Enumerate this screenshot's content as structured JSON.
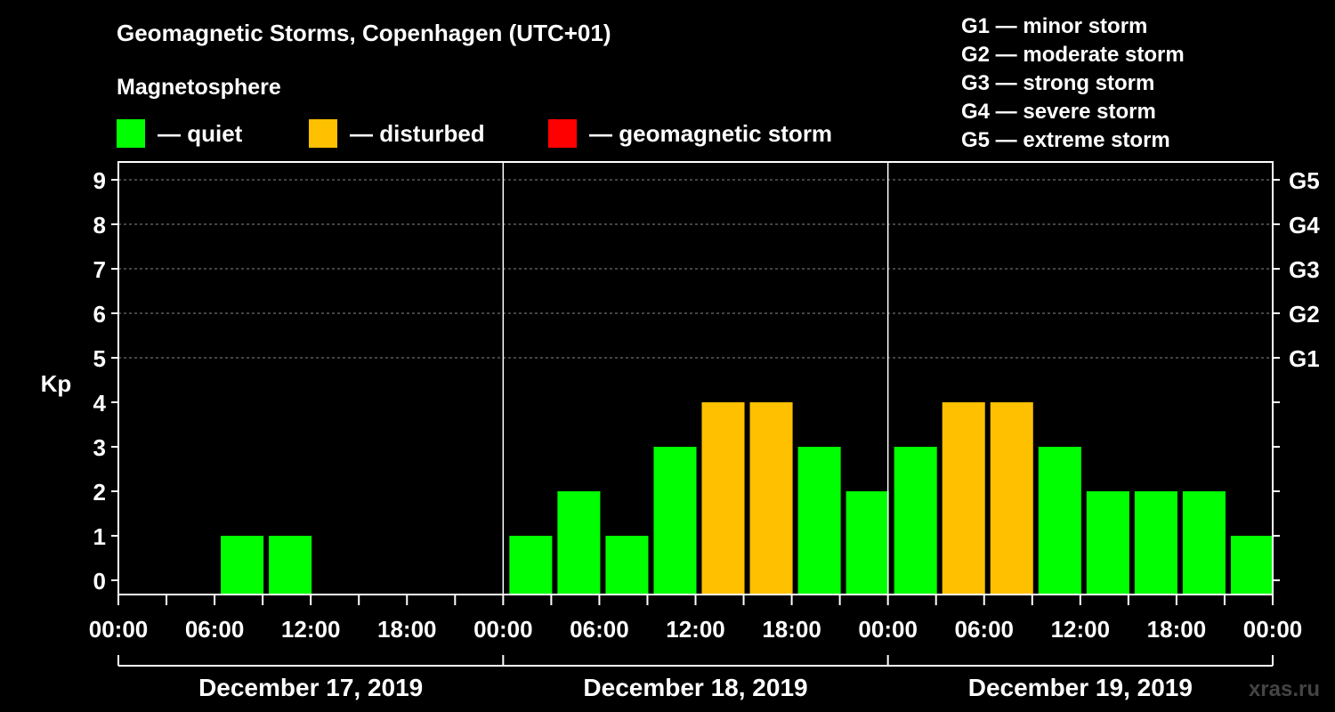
{
  "title": "Geomagnetic Storms, Copenhagen (UTC+01)",
  "magnetosphere_label": "Magnetosphere",
  "legend": [
    {
      "label": "— quiet",
      "color": "#00ff00"
    },
    {
      "label": "— disturbed",
      "color": "#ffc000"
    },
    {
      "label": "— geomagnetic storm",
      "color": "#ff0000"
    }
  ],
  "storm_levels": [
    "G1 — minor storm",
    "G2 — moderate storm",
    "G3 — strong storm",
    "G4 — severe storm",
    "G5 — extreme storm"
  ],
  "watermark": "xras.ru",
  "chart_data": {
    "type": "bar",
    "ylabel": "Kp",
    "ylim": [
      0,
      9
    ],
    "y_ticks": [
      "0",
      "1",
      "2",
      "3",
      "4",
      "5",
      "6",
      "7",
      "8",
      "9"
    ],
    "right_axis_labels": [
      {
        "kp": 5,
        "label": "G1"
      },
      {
        "kp": 6,
        "label": "G2"
      },
      {
        "kp": 7,
        "label": "G3"
      },
      {
        "kp": 8,
        "label": "G4"
      },
      {
        "kp": 9,
        "label": "G5"
      }
    ],
    "x_tick_labels": [
      "00:00",
      "06:00",
      "12:00",
      "18:00",
      "00:00",
      "06:00",
      "12:00",
      "18:00",
      "00:00",
      "06:00",
      "12:00",
      "18:00",
      "00:00"
    ],
    "days": [
      "December 17, 2019",
      "December 18, 2019",
      "December 19, 2019"
    ],
    "grid": "dashed horizontal at Kp 5-9",
    "colors": {
      "quiet": "#00ff00",
      "disturbed": "#ffc000",
      "storm": "#ff0000"
    },
    "series": [
      {
        "values": [
          0,
          0,
          1,
          1,
          0,
          0,
          0,
          0,
          1,
          2,
          1,
          3,
          4,
          4,
          3,
          2,
          3,
          4,
          4,
          3,
          2,
          2,
          2,
          1
        ]
      }
    ]
  }
}
